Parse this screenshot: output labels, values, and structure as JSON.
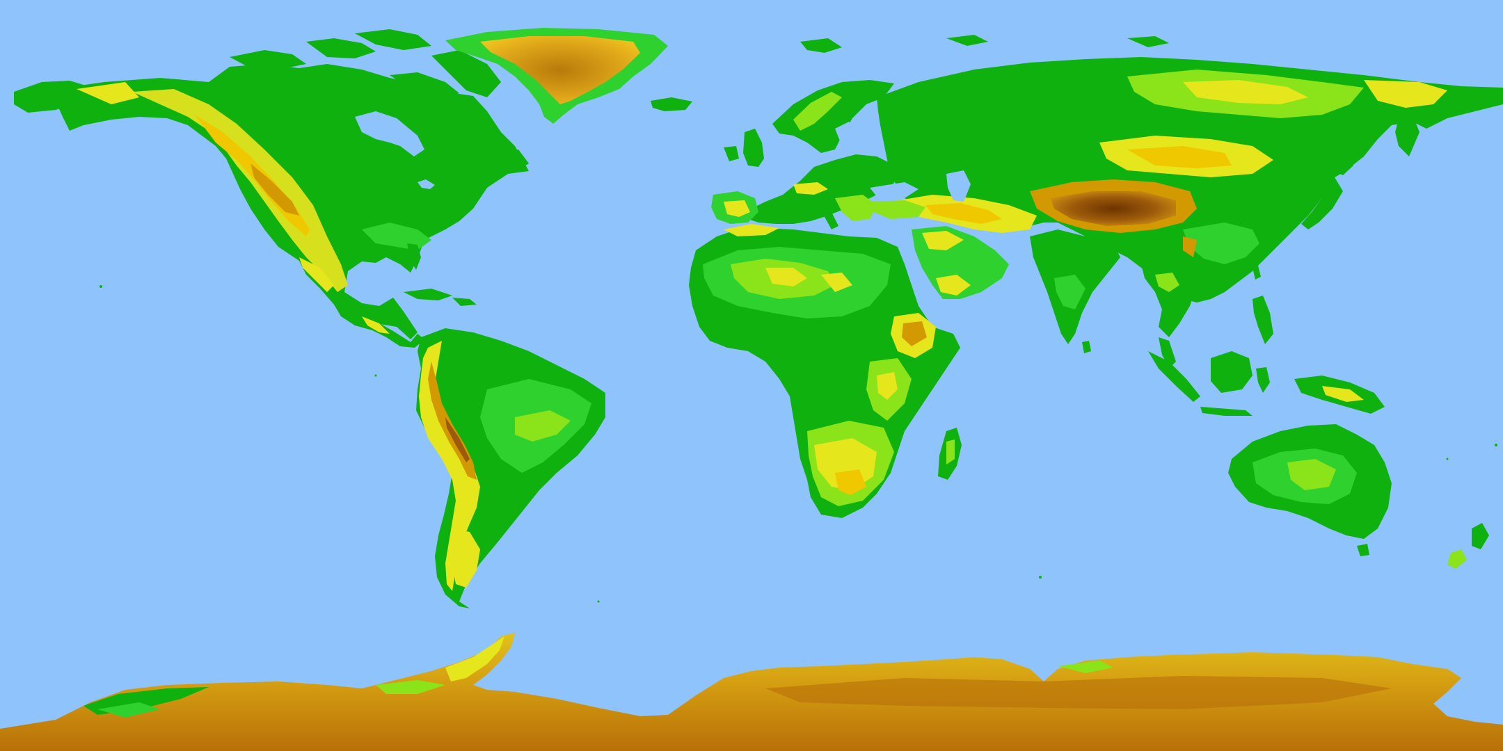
{
  "map": {
    "projection": "equirectangular",
    "colors": {
      "ocean": "#8ec3fb",
      "lowland": "#0fb10f",
      "low": "#2fd12f",
      "mid": "#8be31a",
      "upland": "#e6e61c",
      "high": "#f0c800",
      "highlands": "#d29a00",
      "mountain": "#9c5a0a",
      "summit": "#6e3400",
      "ice": "#e8a91c",
      "ice_deep": "#b87008"
    },
    "landmasses": [
      "north-america",
      "greenland",
      "south-america",
      "europe",
      "africa",
      "asia",
      "arabian-peninsula",
      "indian-subcontinent",
      "australia",
      "antarctica",
      "madagascar",
      "japan",
      "british-isles",
      "new-zealand",
      "new-guinea",
      "borneo",
      "sumatra",
      "svalbard",
      "iceland",
      "caribbean-islands",
      "philippines",
      "sri-lanka"
    ]
  }
}
